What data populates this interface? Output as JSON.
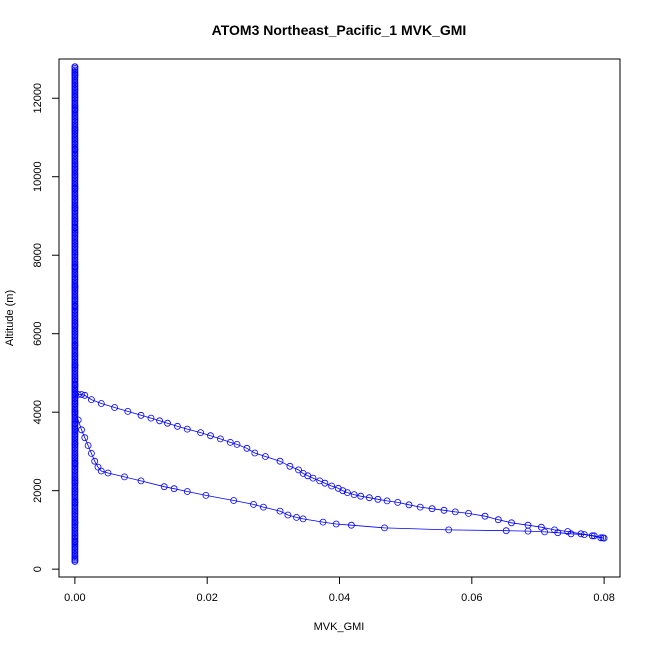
{
  "chart_data": {
    "type": "scatter",
    "title": "ATOM3 Northeast_Pacific_1 MVK_GMI",
    "xlabel": "MVK_GMI",
    "ylabel": "Altitude (m)",
    "xlim": [
      -0.0024,
      0.0824
    ],
    "ylim": [
      -200,
      13000
    ],
    "x_ticks": [
      0.0,
      0.02,
      0.04,
      0.06,
      0.08
    ],
    "x_tick_labels": [
      "0.00",
      "0.02",
      "0.04",
      "0.06",
      "0.08"
    ],
    "y_ticks": [
      0,
      2000,
      4000,
      6000,
      8000,
      10000,
      12000
    ],
    "y_tick_labels": [
      "0",
      "2000",
      "4000",
      "6000",
      "8000",
      "10000",
      "12000"
    ],
    "grid": false,
    "color": "#0000ff",
    "marker": "open-circle",
    "series": [
      {
        "x": [
          0.0,
          0.0,
          0.0,
          0.0,
          0.0,
          0.0,
          0.0,
          0.0,
          0.0,
          0.0,
          0.0,
          0.0,
          0.0,
          0.0,
          0.0,
          0.0,
          0.0,
          0.0,
          0.0,
          0.0,
          0.0,
          0.0,
          0.0,
          0.0,
          0.0,
          0.0,
          0.0
        ],
        "y": [
          200,
          700,
          1200,
          1700,
          2200,
          2700,
          3200,
          3700,
          4200,
          4700,
          5200,
          5700,
          6200,
          6700,
          7200,
          7700,
          8200,
          8700,
          9200,
          9700,
          10200,
          10700,
          11200,
          11700,
          12200,
          12600,
          12800
        ]
      },
      {
        "x": [
          0.0,
          0.0005,
          0.001,
          0.0015,
          0.002,
          0.0025,
          0.003,
          0.0035,
          0.004,
          0.005,
          0.0075,
          0.01,
          0.0135,
          0.015,
          0.017,
          0.0198,
          0.024,
          0.027,
          0.0285,
          0.031,
          0.0322,
          0.0335,
          0.0345,
          0.0375,
          0.0395,
          0.0418,
          0.0468,
          0.0565,
          0.0652,
          0.0685,
          0.071,
          0.073,
          0.075,
          0.077,
          0.0782,
          0.0795,
          0.08
        ],
        "y": [
          4000,
          3800,
          3550,
          3350,
          3150,
          2950,
          2750,
          2600,
          2500,
          2450,
          2350,
          2250,
          2100,
          2050,
          1980,
          1880,
          1750,
          1650,
          1580,
          1480,
          1380,
          1320,
          1280,
          1200,
          1150,
          1120,
          1050,
          1000,
          980,
          970,
          950,
          930,
          900,
          880,
          850,
          800,
          790
        ]
      },
      {
        "x": [
          0.0,
          0.0005,
          0.001,
          0.0015,
          0.0025,
          0.004,
          0.006,
          0.008,
          0.01,
          0.0115,
          0.0128,
          0.014,
          0.0155,
          0.017,
          0.019,
          0.0205,
          0.022,
          0.0235,
          0.0245,
          0.026,
          0.0272,
          0.0288,
          0.031,
          0.0325,
          0.0338,
          0.0345,
          0.0352,
          0.036,
          0.037,
          0.0378,
          0.0388,
          0.0398,
          0.0405,
          0.0412,
          0.0422,
          0.0432,
          0.0445,
          0.0458,
          0.0472,
          0.0488,
          0.0505,
          0.0522,
          0.054,
          0.0558,
          0.0575,
          0.0595,
          0.062,
          0.064,
          0.066,
          0.0685,
          0.0705,
          0.0725,
          0.0745,
          0.0765,
          0.0785,
          0.0798
        ],
        "y": [
          4450,
          4450,
          4450,
          4430,
          4320,
          4220,
          4120,
          4020,
          3920,
          3850,
          3780,
          3720,
          3640,
          3570,
          3480,
          3400,
          3320,
          3230,
          3180,
          3080,
          2960,
          2870,
          2750,
          2620,
          2530,
          2440,
          2380,
          2320,
          2250,
          2190,
          2120,
          2060,
          2000,
          1950,
          1900,
          1860,
          1820,
          1780,
          1740,
          1700,
          1640,
          1580,
          1540,
          1500,
          1460,
          1420,
          1350,
          1260,
          1180,
          1120,
          1070,
          1000,
          960,
          900,
          850,
          800
        ]
      }
    ]
  }
}
